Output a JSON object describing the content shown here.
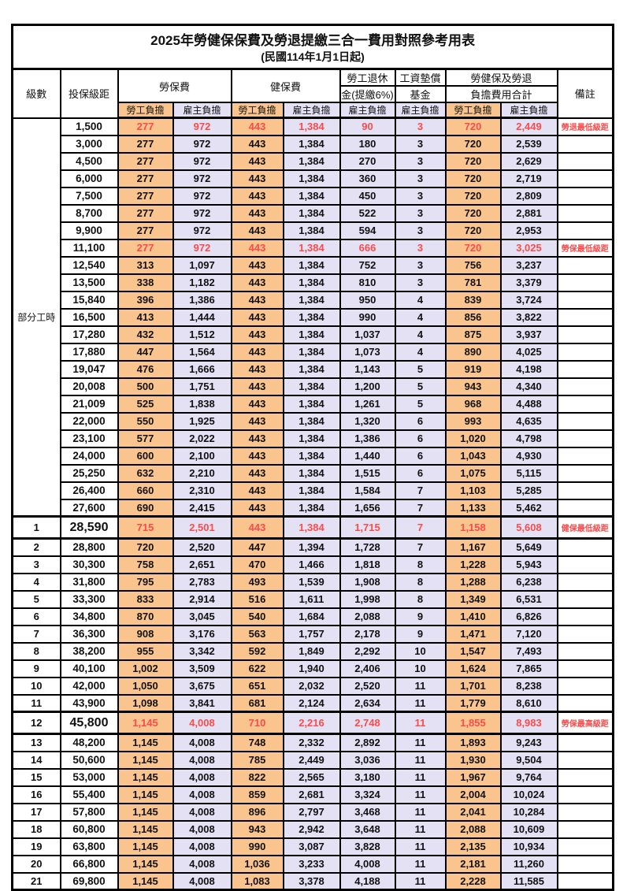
{
  "colors": {
    "employee_bg": "#fac48f",
    "employer_bg": "#e3e1f3",
    "highlight_red": "#fb4b4b",
    "border": "#000000"
  },
  "title": {
    "line1": "2025年勞健保保費及勞退提繳三合一費用對照參考用表",
    "line2": "(民國114年1月1日起)"
  },
  "table": {
    "headers": {
      "level": "級數",
      "bracket": "投保級距",
      "labor_insurance": "勞保費",
      "health_insurance": "健保費",
      "pension_line1": "勞工退休",
      "pension_line2": "金(提繳6%)",
      "wage_fund_line1": "工資墊償",
      "wage_fund_line2": "基金",
      "total_line1": "勞健保及勞退",
      "total_line2": "負擔費用合計",
      "remark": "備註"
    },
    "sub_headers": [
      "勞工負擔",
      "雇主負擔",
      "勞工負擔",
      "雇主負擔",
      "雇主負擔",
      "雇主負擔",
      "勞工負擔",
      "雇主負擔"
    ],
    "group_label": "部分工時",
    "group_rowspan": 23,
    "rows": [
      {
        "level": null,
        "bracket": "1,500",
        "values": [
          "277",
          "972",
          "443",
          "1,384",
          "90",
          "3",
          "720",
          "2,449"
        ],
        "remark": "勞退最低級距",
        "highlight": true,
        "section": false
      },
      {
        "level": null,
        "bracket": "3,000",
        "values": [
          "277",
          "972",
          "443",
          "1,384",
          "180",
          "3",
          "720",
          "2,539"
        ],
        "remark": "",
        "highlight": false,
        "section": false
      },
      {
        "level": null,
        "bracket": "4,500",
        "values": [
          "277",
          "972",
          "443",
          "1,384",
          "270",
          "3",
          "720",
          "2,629"
        ],
        "remark": "",
        "highlight": false,
        "section": false
      },
      {
        "level": null,
        "bracket": "6,000",
        "values": [
          "277",
          "972",
          "443",
          "1,384",
          "360",
          "3",
          "720",
          "2,719"
        ],
        "remark": "",
        "highlight": false,
        "section": false
      },
      {
        "level": null,
        "bracket": "7,500",
        "values": [
          "277",
          "972",
          "443",
          "1,384",
          "450",
          "3",
          "720",
          "2,809"
        ],
        "remark": "",
        "highlight": false,
        "section": false
      },
      {
        "level": null,
        "bracket": "8,700",
        "values": [
          "277",
          "972",
          "443",
          "1,384",
          "522",
          "3",
          "720",
          "2,881"
        ],
        "remark": "",
        "highlight": false,
        "section": false
      },
      {
        "level": null,
        "bracket": "9,900",
        "values": [
          "277",
          "972",
          "443",
          "1,384",
          "594",
          "3",
          "720",
          "2,953"
        ],
        "remark": "",
        "highlight": false,
        "section": false
      },
      {
        "level": null,
        "bracket": "11,100",
        "values": [
          "277",
          "972",
          "443",
          "1,384",
          "666",
          "3",
          "720",
          "3,025"
        ],
        "remark": "勞保最低級距",
        "highlight": true,
        "section": false
      },
      {
        "level": null,
        "bracket": "12,540",
        "values": [
          "313",
          "1,097",
          "443",
          "1,384",
          "752",
          "3",
          "756",
          "3,237"
        ],
        "remark": "",
        "highlight": false,
        "section": false
      },
      {
        "level": null,
        "bracket": "13,500",
        "values": [
          "338",
          "1,182",
          "443",
          "1,384",
          "810",
          "3",
          "781",
          "3,379"
        ],
        "remark": "",
        "highlight": false,
        "section": false
      },
      {
        "level": null,
        "bracket": "15,840",
        "values": [
          "396",
          "1,386",
          "443",
          "1,384",
          "950",
          "4",
          "839",
          "3,724"
        ],
        "remark": "",
        "highlight": false,
        "section": false
      },
      {
        "level": null,
        "bracket": "16,500",
        "values": [
          "413",
          "1,444",
          "443",
          "1,384",
          "990",
          "4",
          "856",
          "3,822"
        ],
        "remark": "",
        "highlight": false,
        "section": false
      },
      {
        "level": null,
        "bracket": "17,280",
        "values": [
          "432",
          "1,512",
          "443",
          "1,384",
          "1,037",
          "4",
          "875",
          "3,937"
        ],
        "remark": "",
        "highlight": false,
        "section": false
      },
      {
        "level": null,
        "bracket": "17,880",
        "values": [
          "447",
          "1,564",
          "443",
          "1,384",
          "1,073",
          "4",
          "890",
          "4,025"
        ],
        "remark": "",
        "highlight": false,
        "section": false
      },
      {
        "level": null,
        "bracket": "19,047",
        "values": [
          "476",
          "1,666",
          "443",
          "1,384",
          "1,143",
          "5",
          "919",
          "4,198"
        ],
        "remark": "",
        "highlight": false,
        "section": false
      },
      {
        "level": null,
        "bracket": "20,008",
        "values": [
          "500",
          "1,751",
          "443",
          "1,384",
          "1,200",
          "5",
          "943",
          "4,340"
        ],
        "remark": "",
        "highlight": false,
        "section": false
      },
      {
        "level": null,
        "bracket": "21,009",
        "values": [
          "525",
          "1,838",
          "443",
          "1,384",
          "1,261",
          "5",
          "968",
          "4,488"
        ],
        "remark": "",
        "highlight": false,
        "section": false
      },
      {
        "level": null,
        "bracket": "22,000",
        "values": [
          "550",
          "1,925",
          "443",
          "1,384",
          "1,320",
          "6",
          "993",
          "4,635"
        ],
        "remark": "",
        "highlight": false,
        "section": false
      },
      {
        "level": null,
        "bracket": "23,100",
        "values": [
          "577",
          "2,022",
          "443",
          "1,384",
          "1,386",
          "6",
          "1,020",
          "4,798"
        ],
        "remark": "",
        "highlight": false,
        "section": false
      },
      {
        "level": null,
        "bracket": "24,000",
        "values": [
          "600",
          "2,100",
          "443",
          "1,384",
          "1,440",
          "6",
          "1,043",
          "4,930"
        ],
        "remark": "",
        "highlight": false,
        "section": false
      },
      {
        "level": null,
        "bracket": "25,250",
        "values": [
          "632",
          "2,210",
          "443",
          "1,384",
          "1,515",
          "6",
          "1,075",
          "5,115"
        ],
        "remark": "",
        "highlight": false,
        "section": false
      },
      {
        "level": null,
        "bracket": "26,400",
        "values": [
          "660",
          "2,310",
          "443",
          "1,384",
          "1,584",
          "7",
          "1,103",
          "5,285"
        ],
        "remark": "",
        "highlight": false,
        "section": false
      },
      {
        "level": null,
        "bracket": "27,600",
        "values": [
          "690",
          "2,415",
          "443",
          "1,384",
          "1,656",
          "7",
          "1,133",
          "5,462"
        ],
        "remark": "",
        "highlight": false,
        "section": false
      },
      {
        "level": "1",
        "bracket": "28,590",
        "values": [
          "715",
          "2,501",
          "443",
          "1,384",
          "1,715",
          "7",
          "1,158",
          "5,608"
        ],
        "remark": "健保最低級距",
        "highlight": true,
        "section": true
      },
      {
        "level": "2",
        "bracket": "28,800",
        "values": [
          "720",
          "2,520",
          "447",
          "1,394",
          "1,728",
          "7",
          "1,167",
          "5,649"
        ],
        "remark": "",
        "highlight": false,
        "section": false
      },
      {
        "level": "3",
        "bracket": "30,300",
        "values": [
          "758",
          "2,651",
          "470",
          "1,466",
          "1,818",
          "8",
          "1,228",
          "5,943"
        ],
        "remark": "",
        "highlight": false,
        "section": false
      },
      {
        "level": "4",
        "bracket": "31,800",
        "values": [
          "795",
          "2,783",
          "493",
          "1,539",
          "1,908",
          "8",
          "1,288",
          "6,238"
        ],
        "remark": "",
        "highlight": false,
        "section": false
      },
      {
        "level": "5",
        "bracket": "33,300",
        "values": [
          "833",
          "2,914",
          "516",
          "1,611",
          "1,998",
          "8",
          "1,349",
          "6,531"
        ],
        "remark": "",
        "highlight": false,
        "section": false
      },
      {
        "level": "6",
        "bracket": "34,800",
        "values": [
          "870",
          "3,045",
          "540",
          "1,684",
          "2,088",
          "9",
          "1,410",
          "6,826"
        ],
        "remark": "",
        "highlight": false,
        "section": false
      },
      {
        "level": "7",
        "bracket": "36,300",
        "values": [
          "908",
          "3,176",
          "563",
          "1,757",
          "2,178",
          "9",
          "1,471",
          "7,120"
        ],
        "remark": "",
        "highlight": false,
        "section": false
      },
      {
        "level": "8",
        "bracket": "38,200",
        "values": [
          "955",
          "3,342",
          "592",
          "1,849",
          "2,292",
          "10",
          "1,547",
          "7,493"
        ],
        "remark": "",
        "highlight": false,
        "section": false
      },
      {
        "level": "9",
        "bracket": "40,100",
        "values": [
          "1,002",
          "3,509",
          "622",
          "1,940",
          "2,406",
          "10",
          "1,624",
          "7,865"
        ],
        "remark": "",
        "highlight": false,
        "section": false
      },
      {
        "level": "10",
        "bracket": "42,000",
        "values": [
          "1,050",
          "3,675",
          "651",
          "2,032",
          "2,520",
          "11",
          "1,701",
          "8,238"
        ],
        "remark": "",
        "highlight": false,
        "section": false
      },
      {
        "level": "11",
        "bracket": "43,900",
        "values": [
          "1,098",
          "3,841",
          "681",
          "2,124",
          "2,634",
          "11",
          "1,779",
          "8,610"
        ],
        "remark": "",
        "highlight": false,
        "section": false
      },
      {
        "level": "12",
        "bracket": "45,800",
        "values": [
          "1,145",
          "4,008",
          "710",
          "2,216",
          "2,748",
          "11",
          "1,855",
          "8,983"
        ],
        "remark": "勞保最高級距",
        "highlight": true,
        "section": true
      },
      {
        "level": "13",
        "bracket": "48,200",
        "values": [
          "1,145",
          "4,008",
          "748",
          "2,332",
          "2,892",
          "11",
          "1,893",
          "9,243"
        ],
        "remark": "",
        "highlight": false,
        "section": false
      },
      {
        "level": "14",
        "bracket": "50,600",
        "values": [
          "1,145",
          "4,008",
          "785",
          "2,449",
          "3,036",
          "11",
          "1,930",
          "9,504"
        ],
        "remark": "",
        "highlight": false,
        "section": false
      },
      {
        "level": "15",
        "bracket": "53,000",
        "values": [
          "1,145",
          "4,008",
          "822",
          "2,565",
          "3,180",
          "11",
          "1,967",
          "9,764"
        ],
        "remark": "",
        "highlight": false,
        "section": false
      },
      {
        "level": "16",
        "bracket": "55,400",
        "values": [
          "1,145",
          "4,008",
          "859",
          "2,681",
          "3,324",
          "11",
          "2,004",
          "10,024"
        ],
        "remark": "",
        "highlight": false,
        "section": false
      },
      {
        "level": "17",
        "bracket": "57,800",
        "values": [
          "1,145",
          "4,008",
          "896",
          "2,797",
          "3,468",
          "11",
          "2,041",
          "10,284"
        ],
        "remark": "",
        "highlight": false,
        "section": false
      },
      {
        "level": "18",
        "bracket": "60,800",
        "values": [
          "1,145",
          "4,008",
          "943",
          "2,942",
          "3,648",
          "11",
          "2,088",
          "10,609"
        ],
        "remark": "",
        "highlight": false,
        "section": false
      },
      {
        "level": "19",
        "bracket": "63,800",
        "values": [
          "1,145",
          "4,008",
          "990",
          "3,087",
          "3,828",
          "11",
          "2,135",
          "10,934"
        ],
        "remark": "",
        "highlight": false,
        "section": false
      },
      {
        "level": "20",
        "bracket": "66,800",
        "values": [
          "1,145",
          "4,008",
          "1,036",
          "3,233",
          "4,008",
          "11",
          "2,181",
          "11,260"
        ],
        "remark": "",
        "highlight": false,
        "section": false
      },
      {
        "level": "21",
        "bracket": "69,800",
        "values": [
          "1,145",
          "4,008",
          "1,083",
          "3,378",
          "4,188",
          "11",
          "2,228",
          "11,585"
        ],
        "remark": "",
        "highlight": false,
        "section": false
      }
    ]
  }
}
